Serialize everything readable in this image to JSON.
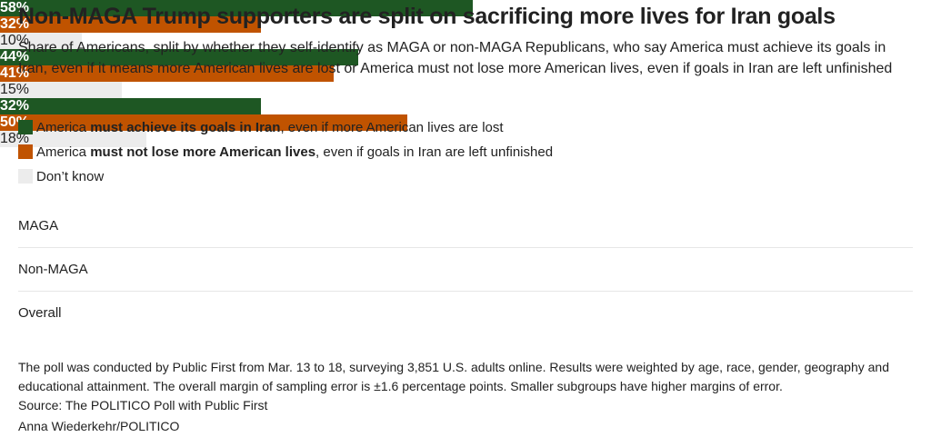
{
  "chart_data": {
    "type": "stacked_bar_horizontal",
    "title": "Non-MAGA Trump supporters are split on sacrificing more lives for Iran goals",
    "subtitle": "Share of Americans, split by whether they self-identify as MAGA or non-MAGA Republicans, who say America must achieve its goals in Iran, even if it means more American lives are lost or America must not lose more American lives, even if goals in Iran are left unfinished",
    "categories": [
      "MAGA",
      "Non-MAGA",
      "Overall"
    ],
    "xlim": [
      0,
      100
    ],
    "series": [
      {
        "name": [
          "America ",
          "must achieve its goals in Iran",
          ", even if more American lives are lost"
        ],
        "color": "#1e5723",
        "label_color": "#ffffff",
        "values": [
          58,
          44,
          32
        ],
        "value_labels": [
          "58%",
          "44%",
          "32%"
        ]
      },
      {
        "name": [
          "America ",
          "must not lose more American lives",
          ", even if goals in Iran are left unfinished"
        ],
        "color": "#c05300",
        "label_color": "#ffffff",
        "values": [
          32,
          41,
          50
        ],
        "value_labels": [
          "32%",
          "41%",
          "50%"
        ]
      },
      {
        "name": [
          "Don’t know"
        ],
        "color": "#ececec",
        "label_color": "#222222",
        "values": [
          10,
          15,
          18
        ],
        "value_labels": [
          "10%",
          "15%",
          "18%"
        ]
      }
    ],
    "notes": [
      "The poll was conducted by Public First from Mar. 13 to 18, surveying 3,851 U.S. adults online. Results were weighted by age, race, gender, geography and educational attainment. The overall margin of sampling error is ±1.6 percentage points. Smaller subgroups have higher margins of error.",
      "Source: The POLITICO Poll with Public First",
      "Anna Wiederkehr/POLITICO"
    ]
  }
}
